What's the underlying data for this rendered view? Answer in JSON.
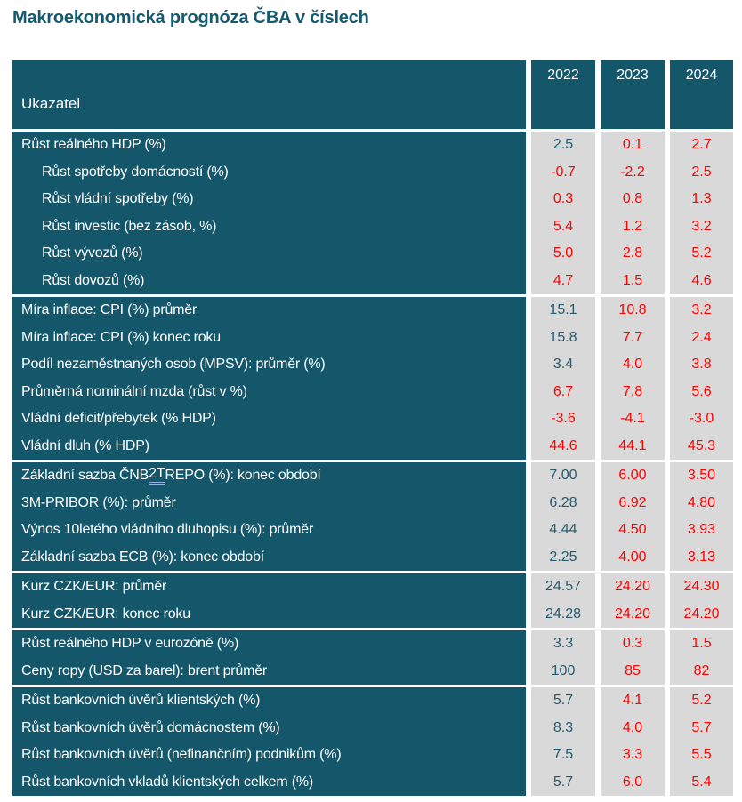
{
  "title": "Makroekonomická prognóza ČBA v číslech",
  "colors": {
    "teal_bg": "#14566A",
    "title_color": "#15596E",
    "gray_bg": "#D9D9D9",
    "red_value": "#FE0000",
    "teal_value": "#26596C",
    "underline_blue": "#8FB6E0"
  },
  "table": {
    "header": {
      "indicator_label": "Ukazatel",
      "years": [
        "2022",
        "2023",
        "2024"
      ]
    },
    "blocks": [
      {
        "rows": [
          {
            "label": "Růst reálného HDP (%)",
            "indent": false,
            "values": [
              {
                "text": "2.5",
                "color": "teal"
              },
              {
                "text": "0.1",
                "color": "red"
              },
              {
                "text": "2.7",
                "color": "red"
              }
            ]
          },
          {
            "label": "Růst spotřeby domácností (%)",
            "indent": true,
            "values": [
              {
                "text": "-0.7",
                "color": "red"
              },
              {
                "text": "-2.2",
                "color": "red"
              },
              {
                "text": "2.5",
                "color": "red"
              }
            ]
          },
          {
            "label": "Růst vládní spotřeby (%)",
            "indent": true,
            "values": [
              {
                "text": "0.3",
                "color": "red"
              },
              {
                "text": "0.8",
                "color": "red"
              },
              {
                "text": "1.3",
                "color": "red"
              }
            ]
          },
          {
            "label": "Růst investic (bez zásob, %)",
            "indent": true,
            "values": [
              {
                "text": "5.4",
                "color": "red"
              },
              {
                "text": "1.2",
                "color": "red"
              },
              {
                "text": "3.2",
                "color": "red"
              }
            ]
          },
          {
            "label": "Růst vývozů (%)",
            "indent": true,
            "values": [
              {
                "text": "5.0",
                "color": "red"
              },
              {
                "text": "2.8",
                "color": "red"
              },
              {
                "text": "5.2",
                "color": "red"
              }
            ]
          },
          {
            "label": "Růst dovozů (%)",
            "indent": true,
            "values": [
              {
                "text": "4.7",
                "color": "red"
              },
              {
                "text": "1.5",
                "color": "red"
              },
              {
                "text": "4.6",
                "color": "red"
              }
            ]
          }
        ]
      },
      {
        "rows": [
          {
            "label": "Míra inflace: CPI (%) průměr",
            "indent": false,
            "values": [
              {
                "text": "15.1",
                "color": "teal"
              },
              {
                "text": "10.8",
                "color": "red"
              },
              {
                "text": "3.2",
                "color": "red"
              }
            ]
          },
          {
            "label": "Míra inflace: CPI (%) konec roku",
            "indent": false,
            "values": [
              {
                "text": "15.8",
                "color": "teal"
              },
              {
                "text": "7.7",
                "color": "red"
              },
              {
                "text": "2.4",
                "color": "red"
              }
            ]
          },
          {
            "label": "Podíl nezaměstnaných osob (MPSV): průměr (%)",
            "indent": false,
            "values": [
              {
                "text": "3.4",
                "color": "teal"
              },
              {
                "text": "4.0",
                "color": "red"
              },
              {
                "text": "3.8",
                "color": "red"
              }
            ]
          },
          {
            "label": "Průměrná nominální mzda (růst v %)",
            "indent": false,
            "values": [
              {
                "text": "6.7",
                "color": "red"
              },
              {
                "text": "7.8",
                "color": "red"
              },
              {
                "text": "5.6",
                "color": "red"
              }
            ]
          },
          {
            "label": "Vládní deficit/přebytek (% HDP)",
            "indent": false,
            "values": [
              {
                "text": "-3.6",
                "color": "red"
              },
              {
                "text": "-4.1",
                "color": "red"
              },
              {
                "text": "-3.0",
                "color": "red"
              }
            ]
          },
          {
            "label": "Vládní dluh (% HDP)",
            "indent": false,
            "values": [
              {
                "text": "44.6",
                "color": "red"
              },
              {
                "text": "44.1",
                "color": "red"
              },
              {
                "text": "45.3",
                "color": "red"
              }
            ]
          }
        ]
      },
      {
        "rows": [
          {
            "label_parts": {
              "prefix": "Základní sazba ČNB ",
              "underlined": "2T",
              "suffix": " REPO (%): konec období"
            },
            "indent": false,
            "values": [
              {
                "text": "7.00",
                "color": "teal"
              },
              {
                "text": "6.00",
                "color": "red"
              },
              {
                "text": "3.50",
                "color": "red"
              }
            ]
          },
          {
            "label": "3M-PRIBOR (%): průměr",
            "indent": false,
            "values": [
              {
                "text": "6.28",
                "color": "teal"
              },
              {
                "text": "6.92",
                "color": "red"
              },
              {
                "text": "4.80",
                "color": "red"
              }
            ]
          },
          {
            "label": "Výnos 10letého vládního dluhopisu (%): průměr",
            "indent": false,
            "values": [
              {
                "text": "4.44",
                "color": "teal"
              },
              {
                "text": "4.50",
                "color": "red"
              },
              {
                "text": "3.93",
                "color": "red"
              }
            ]
          },
          {
            "label": "Základní sazba ECB (%): konec období",
            "indent": false,
            "values": [
              {
                "text": "2.25",
                "color": "teal"
              },
              {
                "text": "4.00",
                "color": "red"
              },
              {
                "text": "3.13",
                "color": "red"
              }
            ]
          }
        ]
      },
      {
        "rows": [
          {
            "label": "Kurz CZK/EUR: průměr",
            "indent": false,
            "values": [
              {
                "text": "24.57",
                "color": "teal"
              },
              {
                "text": "24.20",
                "color": "red"
              },
              {
                "text": "24.30",
                "color": "red"
              }
            ]
          },
          {
            "label": "Kurz CZK/EUR: konec roku",
            "indent": false,
            "values": [
              {
                "text": "24.28",
                "color": "teal"
              },
              {
                "text": "24.20",
                "color": "red"
              },
              {
                "text": "24.20",
                "color": "red"
              }
            ]
          }
        ]
      },
      {
        "rows": [
          {
            "label": "Růst reálného HDP v eurozóně (%)",
            "indent": false,
            "values": [
              {
                "text": "3.3",
                "color": "teal"
              },
              {
                "text": "0.3",
                "color": "red"
              },
              {
                "text": "1.5",
                "color": "red"
              }
            ]
          },
          {
            "label": "Ceny ropy (USD za barel): brent průměr",
            "indent": false,
            "values": [
              {
                "text": "100",
                "color": "teal"
              },
              {
                "text": "85",
                "color": "red"
              },
              {
                "text": "82",
                "color": "red"
              }
            ]
          }
        ]
      },
      {
        "rows": [
          {
            "label": "Růst bankovních úvěrů klientských (%)",
            "indent": false,
            "values": [
              {
                "text": "5.7",
                "color": "teal"
              },
              {
                "text": "4.1",
                "color": "red"
              },
              {
                "text": "5.2",
                "color": "red"
              }
            ]
          },
          {
            "label": "Růst bankovních úvěrů domácnostem (%)",
            "indent": false,
            "values": [
              {
                "text": "8.3",
                "color": "teal"
              },
              {
                "text": "4.0",
                "color": "red"
              },
              {
                "text": "5.7",
                "color": "red"
              }
            ]
          },
          {
            "label": "Růst bankovních úvěrů (nefinančním) podnikům (%)",
            "indent": false,
            "values": [
              {
                "text": "7.5",
                "color": "teal"
              },
              {
                "text": "3.3",
                "color": "red"
              },
              {
                "text": "5.5",
                "color": "red"
              }
            ]
          },
          {
            "label": "Růst bankovních vkladů klientských celkem (%)",
            "indent": false,
            "values": [
              {
                "text": "5.7",
                "color": "teal"
              },
              {
                "text": "6.0",
                "color": "red"
              },
              {
                "text": "5.4",
                "color": "red"
              }
            ]
          }
        ]
      }
    ]
  }
}
